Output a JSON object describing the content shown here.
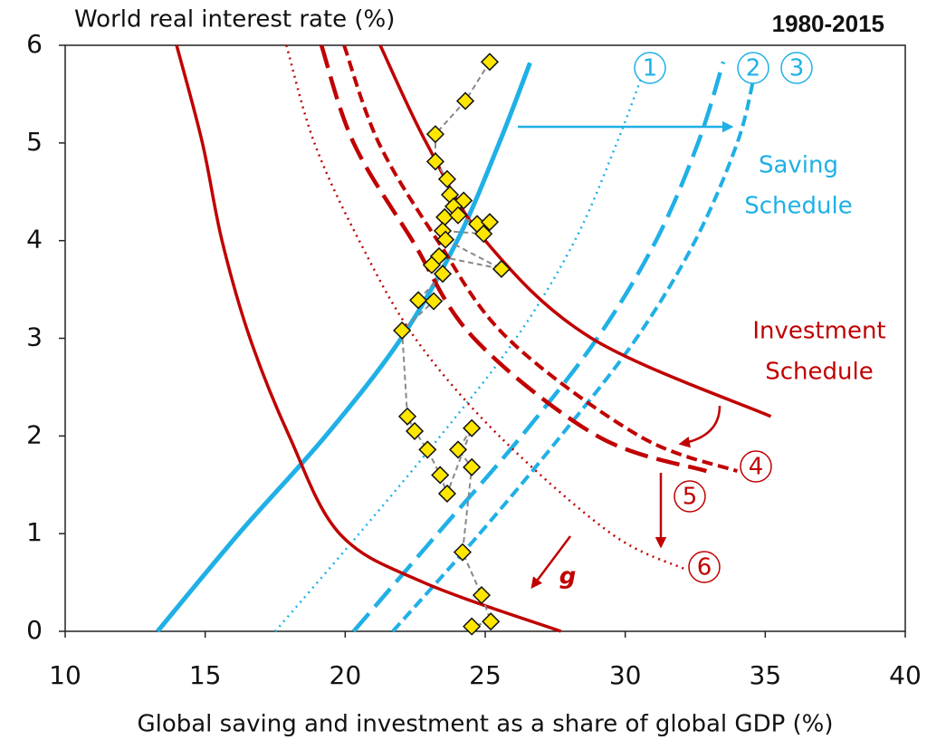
{
  "chart_data": {
    "type": "scatter",
    "y_label": "World real interest rate (%)",
    "x_label": "Global saving and investment as a share of global GDP (%)",
    "period": "1980-2015",
    "xlim": [
      10,
      40
    ],
    "xticks": [
      10,
      15,
      20,
      25,
      30,
      35,
      40
    ],
    "ylim": [
      0,
      6
    ],
    "yticks": [
      0,
      1,
      2,
      3,
      4,
      5,
      6
    ],
    "points": {
      "color": "#ffe600",
      "line_color": "#888888",
      "x": [
        25.16,
        24.29,
        23.22,
        23.22,
        23.64,
        23.74,
        24.23,
        23.87,
        23.55,
        24.03,
        24.71,
        25.16,
        24.94,
        23.48,
        23.58,
        25.58,
        23.35,
        23.09,
        23.48,
        22.61,
        23.16,
        22.03,
        22.22,
        22.48,
        22.94,
        23.39,
        23.64,
        24.52,
        24.03,
        24.52,
        24.19,
        24.87,
        25.2,
        24.52
      ],
      "y": [
        5.83,
        5.43,
        5.09,
        4.81,
        4.63,
        4.47,
        4.41,
        4.35,
        4.24,
        4.26,
        4.17,
        4.19,
        4.07,
        4.1,
        4.01,
        3.71,
        3.84,
        3.75,
        3.66,
        3.39,
        3.38,
        3.08,
        2.2,
        2.05,
        1.86,
        1.6,
        1.41,
        2.08,
        1.86,
        1.68,
        0.81,
        0.37,
        0.1,
        0.05
      ]
    },
    "series": [
      {
        "color": "#1fb0e6",
        "style": "solid",
        "x": [
          13.3,
          16.2,
          19.3,
          22.0,
          24.0,
          25.5,
          26.6
        ],
        "y": [
          0,
          1,
          2,
          3,
          4,
          5,
          5.82
        ]
      },
      {
        "name": "1",
        "color": "#1fb0e6",
        "style": "dotted",
        "x": [
          17.5,
          20.5,
          23.4,
          26.1,
          28.2,
          29.7,
          30.7
        ],
        "y": [
          0,
          1,
          2,
          3,
          4,
          5,
          5.77
        ]
      },
      {
        "name": "2",
        "color": "#1fb0e6",
        "style": "longdash",
        "x": [
          20.3,
          23.3,
          26.3,
          29.0,
          31.1,
          32.6,
          33.5
        ],
        "y": [
          0,
          1,
          2,
          3,
          4,
          5,
          5.83
        ]
      },
      {
        "name": "3",
        "color": "#1fb0e6",
        "style": "dashed",
        "x": [
          21.7,
          24.8,
          27.7,
          30.4,
          32.5,
          34.0,
          34.6
        ],
        "y": [
          0,
          1,
          2,
          3,
          4,
          5,
          5.68
        ]
      },
      {
        "color": "#c00000",
        "style": "solid",
        "x": [
          21.25,
          22.9,
          25.0,
          28.8,
          35.2
        ],
        "y": [
          6,
          5,
          4,
          3,
          2.2
        ]
      },
      {
        "name": "4",
        "color": "#c00000",
        "style": "dashed",
        "x": [
          19.96,
          21.2,
          23.3,
          25.8,
          30.5,
          34.0
        ],
        "y": [
          6,
          5,
          4,
          3,
          2,
          1.64
        ]
      },
      {
        "name": "5",
        "color": "#c00000",
        "style": "longdash",
        "x": [
          19.15,
          20.3,
          22.4,
          24.6,
          29.0,
          32.9
        ],
        "y": [
          6,
          5,
          4,
          3,
          2,
          1.64
        ]
      },
      {
        "name": "6",
        "color": "#c00000",
        "style": "dotted",
        "x": [
          17.9,
          18.9,
          20.5,
          22.5,
          25.5,
          29.5,
          32.1
        ],
        "y": [
          6,
          5,
          4,
          3,
          2,
          1,
          0.64
        ]
      },
      {
        "color": "#c00000",
        "style": "solid",
        "x": [
          13.98,
          14.9,
          15.6,
          16.6,
          18.0,
          19.8,
          22.8,
          27.7
        ],
        "y": [
          6,
          5,
          4,
          3,
          2,
          1,
          0.5,
          0
        ]
      }
    ],
    "saving_label": [
      "Saving",
      "Schedule"
    ],
    "investment_label": [
      "Investment",
      "Schedule"
    ],
    "g_label": "g"
  }
}
